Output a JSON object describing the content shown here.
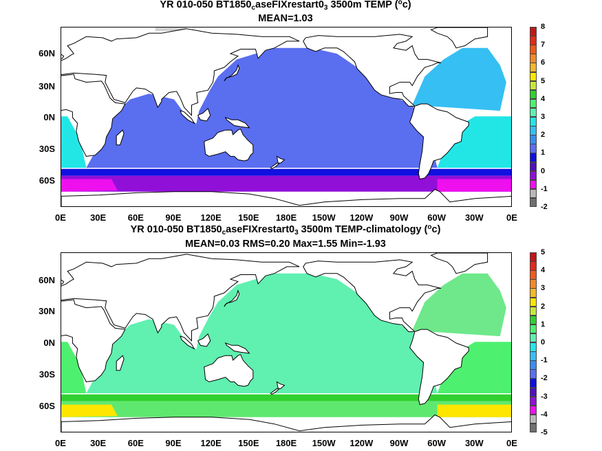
{
  "chart_data": [
    {
      "type": "heatmap",
      "title_parts": [
        "YR 010-050 BT1850",
        "c",
        "aseFIXrestart0",
        "3",
        " 3500m TEMP (",
        "o",
        "c)"
      ],
      "subtitle": "MEAN=1.03",
      "y_tick_labels": [
        "60N",
        "30N",
        "0N",
        "30S",
        "60S"
      ],
      "x_tick_labels": [
        "0E",
        "30E",
        "60E",
        "90E",
        "120E",
        "150E",
        "180E",
        "150W",
        "120W",
        "90W",
        "60W",
        "30W",
        "0E"
      ],
      "colorbar": {
        "tick_labels": [
          "8",
          "7",
          "6",
          "5",
          "4",
          "3",
          "2",
          "1",
          "0",
          "-1",
          "-2"
        ],
        "colors": [
          "#c01818",
          "#e22a18",
          "#f05a1a",
          "#f38a2a",
          "#f5b72a",
          "#ffe600",
          "#c6e83a",
          "#30d030",
          "#4ef070",
          "#60f0b0",
          "#22e6e6",
          "#36bff3",
          "#3a8cf0",
          "#5a6ef0",
          "#1010e0",
          "#5010c0",
          "#9010d8",
          "#ee10ee",
          "#b8b8b8",
          "#707070"
        ]
      },
      "field_colors": {
        "ocean": "#5a6ef0",
        "atlantic": "#36bff3",
        "tropical_atlantic": "#22e6e6",
        "southern": "#9010d8",
        "southern_deep": "#1010e0",
        "southern_cold": "#ee10ee",
        "ice": "#d0d0d0"
      }
    },
    {
      "type": "heatmap",
      "title_parts": [
        "YR 010-050 BT1850",
        "c",
        "aseFIXrestart0",
        "3",
        " 3500m TEMP-climatology (",
        "o",
        "c)"
      ],
      "subtitle": "MEAN=0.03   RMS=0.20   Max=1.55   Min=-1.93",
      "y_tick_labels": [
        "60N",
        "30N",
        "0N",
        "30S",
        "60S"
      ],
      "x_tick_labels": [
        "0E",
        "30E",
        "60E",
        "90E",
        "120E",
        "150E",
        "180E",
        "150W",
        "120W",
        "90W",
        "60W",
        "30W",
        "0E"
      ],
      "colorbar": {
        "tick_labels": [
          "5",
          "4",
          "3",
          "2",
          "1",
          "0",
          "-1",
          "-2",
          "-3",
          "-4",
          "-5"
        ],
        "colors": [
          "#c01818",
          "#e22a18",
          "#f05a1a",
          "#f38a2a",
          "#f5b72a",
          "#ffe600",
          "#c6e83a",
          "#30d030",
          "#4ef070",
          "#60f0b0",
          "#22e6e6",
          "#36bff3",
          "#3a8cf0",
          "#5a6ef0",
          "#1010e0",
          "#5010c0",
          "#9010d8",
          "#ee10ee",
          "#b8b8b8",
          "#707070"
        ]
      },
      "field_colors": {
        "ocean": "#60f0b0",
        "atlantic": "#6ee88a",
        "tropical_atlantic": "#4ef070",
        "southern": "#5fe870",
        "southern_deep": "#30d030",
        "southern_cold": "#ffe600",
        "ice": "#ffffff"
      }
    }
  ]
}
